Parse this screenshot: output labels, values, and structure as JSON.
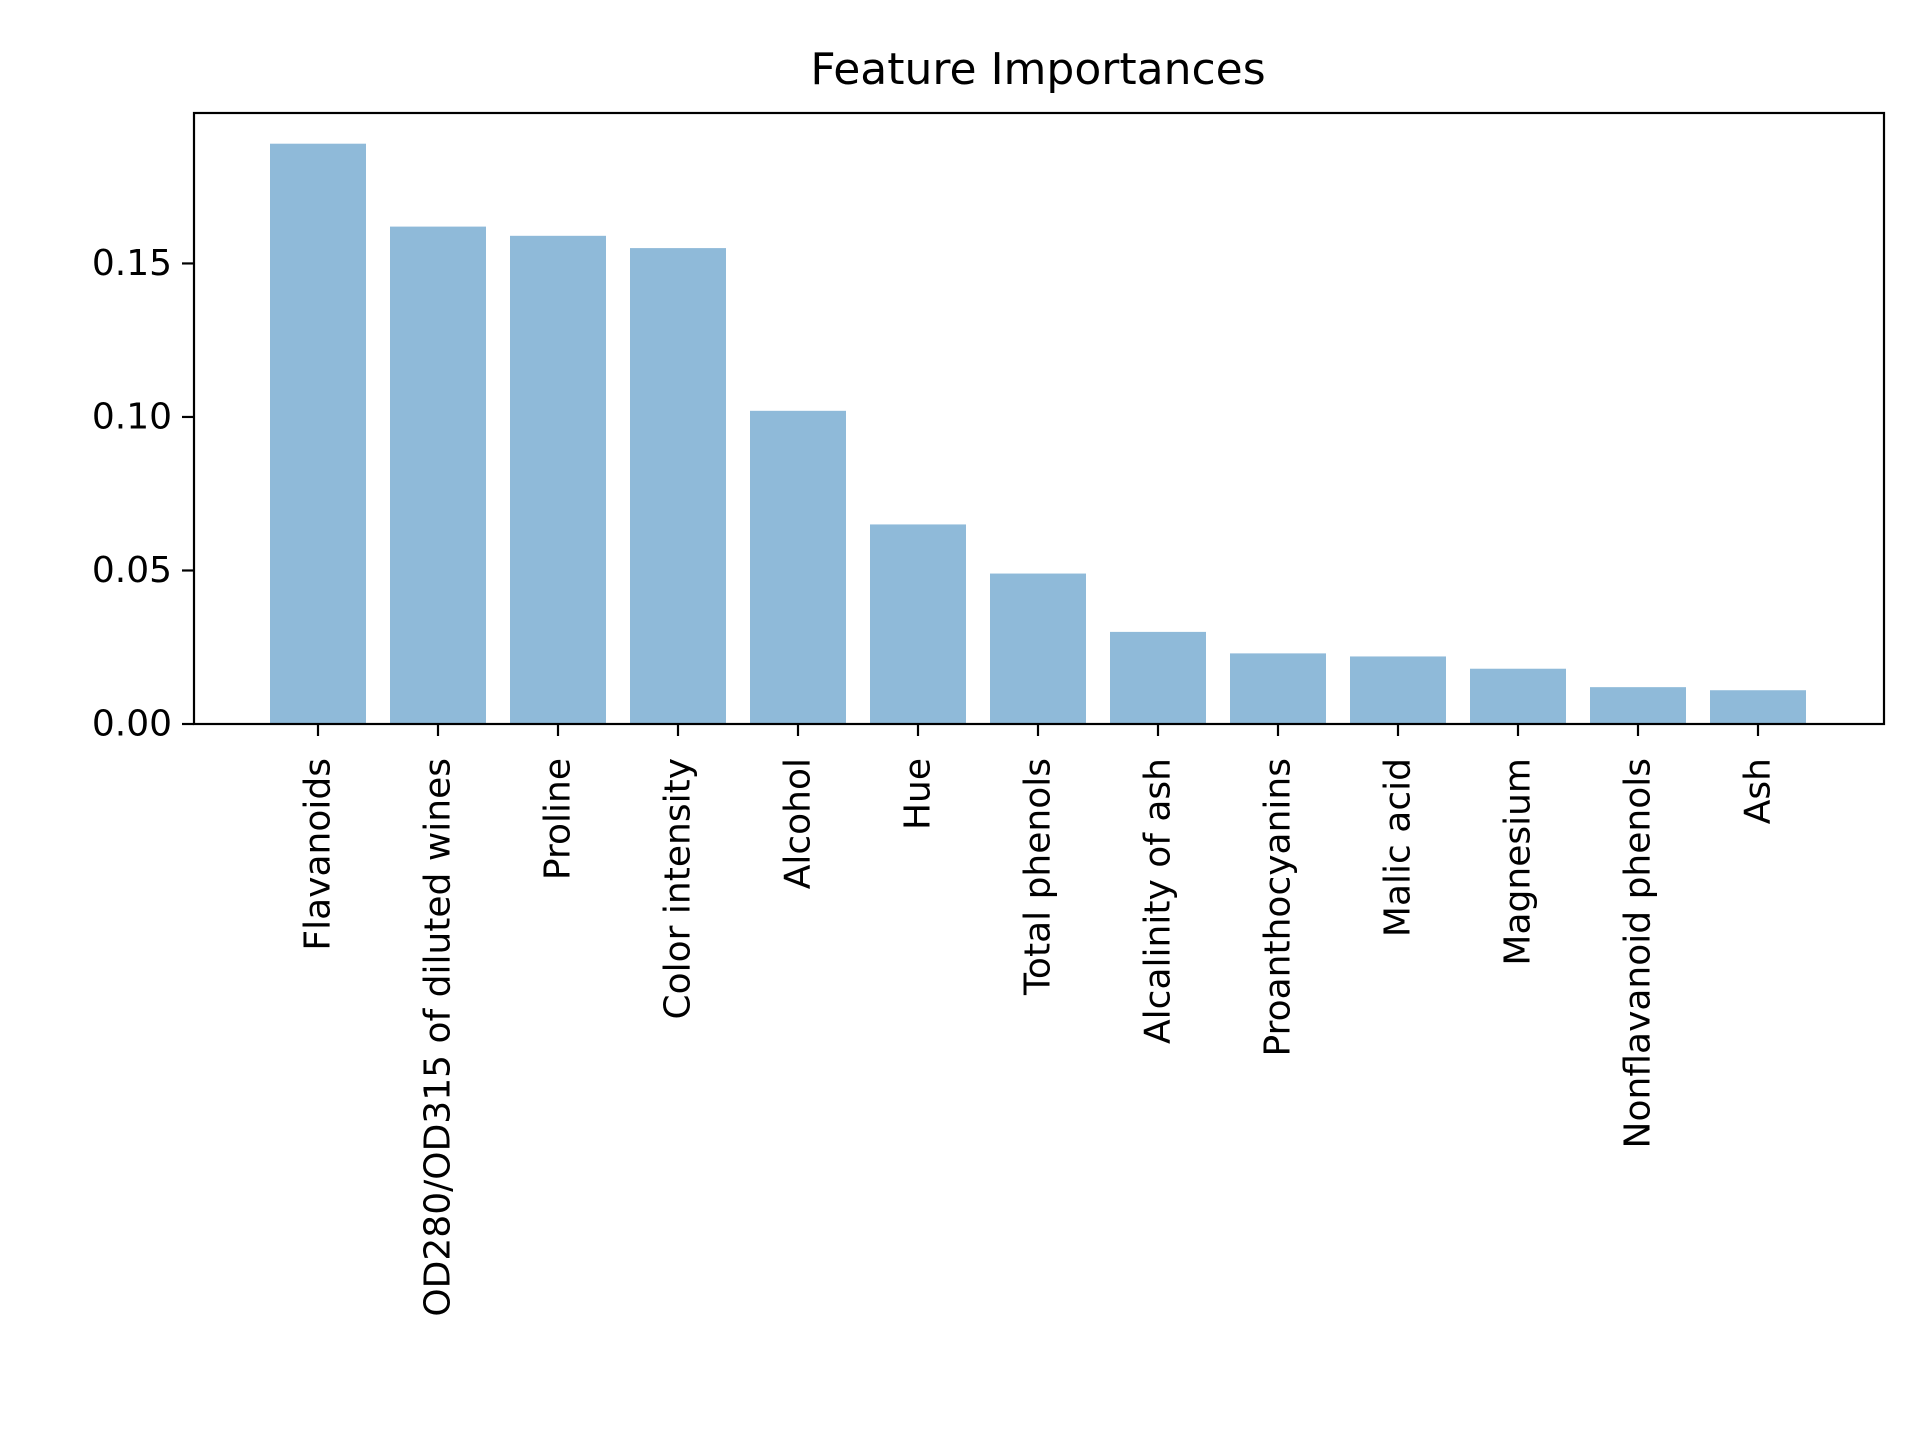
{
  "chart_data": {
    "type": "bar",
    "title": "Feature Importances",
    "xlabel": "",
    "ylabel": "",
    "categories": [
      "Flavanoids",
      "OD280/OD315 of diluted wines",
      "Proline",
      "Color intensity",
      "Alcohol",
      "Hue",
      "Total phenols",
      "Alcalinity of ash",
      "Proanthocyanins",
      "Malic acid",
      "Magnesium",
      "Nonflavanoid phenols",
      "Ash"
    ],
    "values": [
      0.189,
      0.162,
      0.159,
      0.155,
      0.102,
      0.065,
      0.049,
      0.03,
      0.023,
      0.022,
      0.018,
      0.012,
      0.011
    ],
    "ylim": [
      0,
      0.199
    ],
    "yticks": [
      0.0,
      0.05,
      0.1,
      0.15
    ],
    "ytick_labels": [
      "0.00",
      "0.05",
      "0.10",
      "0.15"
    ],
    "bar_color": "#8fbad9",
    "grid": false,
    "legend": "none"
  }
}
